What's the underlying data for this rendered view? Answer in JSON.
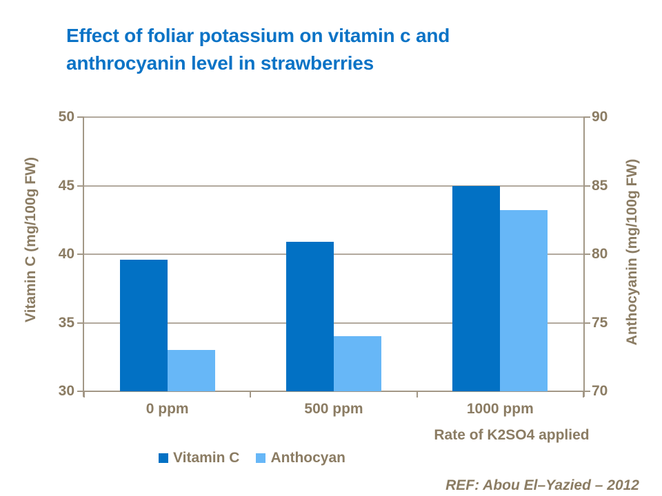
{
  "slide": {
    "title_line1": "Effect of foliar potassium on vitamin c and",
    "title_line2": "anthrocyanin level in strawberries",
    "reference": "REF: Abou El–Yazied – 2012",
    "colors": {
      "title": "#0b73c6",
      "text": "#8b7c63",
      "grid": "#b2a99d",
      "axis": "#a29786",
      "series1": "#0271c4",
      "series2": "#67b7f7",
      "background": "#ffffff"
    }
  },
  "chart_data": {
    "type": "bar",
    "title": "",
    "categories": [
      "0 ppm",
      "500 ppm",
      "1000 ppm"
    ],
    "series": [
      {
        "name": "Vitamin C",
        "axis": "left",
        "color": "#0271c4",
        "values": [
          39.6,
          40.9,
          45.0
        ]
      },
      {
        "name": "Anthocyan",
        "axis": "right",
        "color": "#67b7f7",
        "values": [
          73.0,
          74.0,
          83.2
        ]
      }
    ],
    "xlabel": "Rate of K2SO4 applied",
    "left_axis": {
      "label": "Vitamin C (mg/100g FW)",
      "min": 30,
      "max": 50,
      "ticks": [
        30,
        35,
        40,
        45,
        50
      ]
    },
    "right_axis": {
      "label": "Anthocyanin (mg/100g FW)",
      "min": 70,
      "max": 90,
      "ticks": [
        70,
        75,
        80,
        85,
        90
      ]
    },
    "grid": true,
    "legend_position": "bottom"
  }
}
